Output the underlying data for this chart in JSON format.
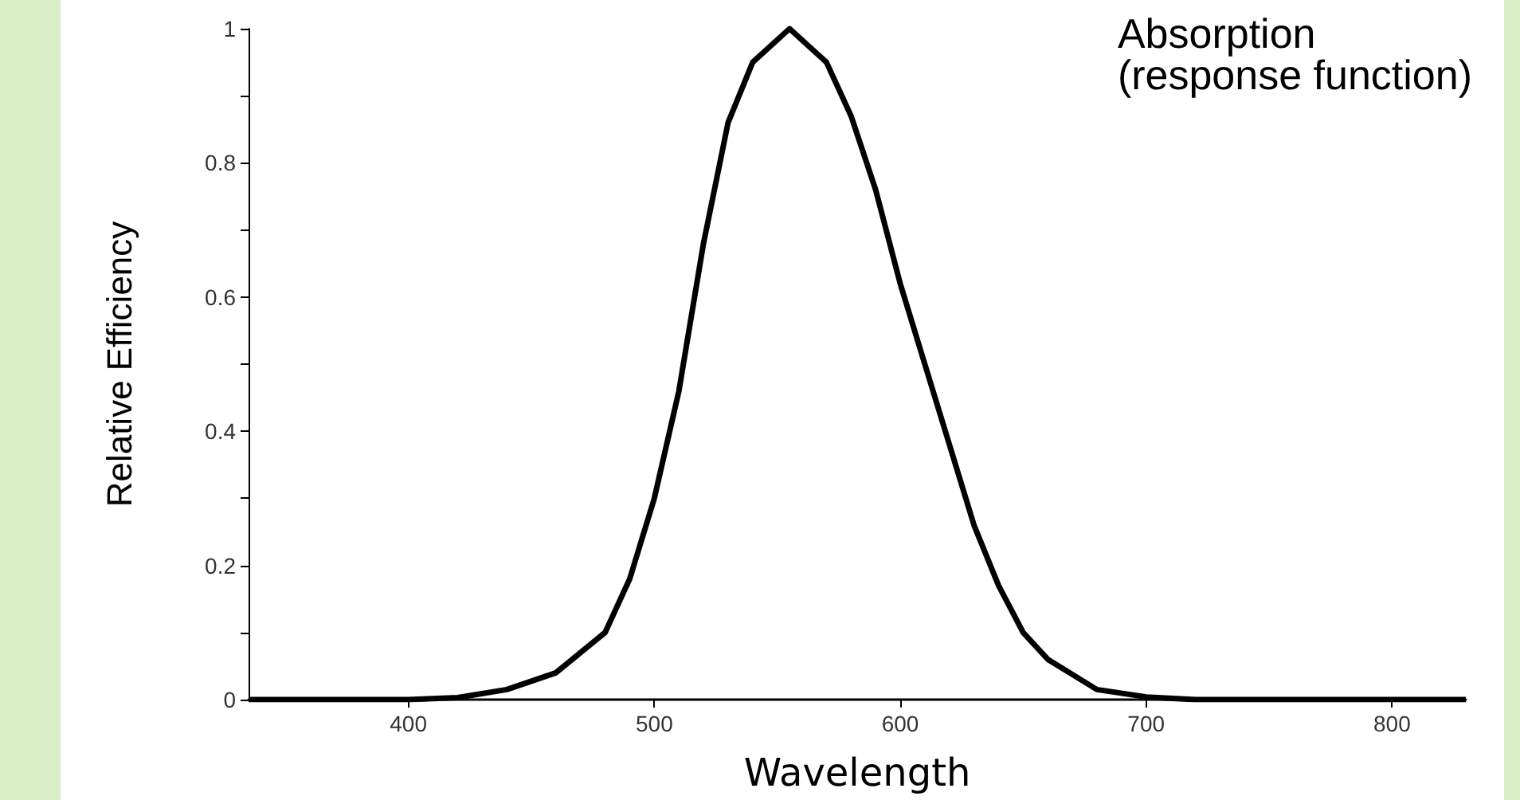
{
  "chart_data": {
    "type": "line",
    "xlabel": "Wavelength",
    "ylabel": "Relative Efficiency",
    "annotations": [
      "Absorption\n(response function)"
    ],
    "x": [
      335,
      400,
      420,
      440,
      460,
      480,
      490,
      500,
      510,
      520,
      530,
      540,
      555,
      570,
      580,
      590,
      600,
      610,
      620,
      630,
      640,
      650,
      660,
      680,
      700,
      720,
      830
    ],
    "series": [
      {
        "color": "#000000",
        "values": [
          0,
          0,
          0.003,
          0.015,
          0.04,
          0.1,
          0.18,
          0.3,
          0.46,
          0.68,
          0.86,
          0.95,
          1,
          0.95,
          0.87,
          0.76,
          0.62,
          0.5,
          0.38,
          0.26,
          0.17,
          0.1,
          0.06,
          0.015,
          0.004,
          0,
          0
        ]
      }
    ],
    "xlim": [
      335,
      830
    ],
    "xticks": [
      400,
      500,
      600,
      700,
      800
    ],
    "ylim": [
      0,
      1
    ],
    "yticks": [
      0,
      {
        "value": 0.1,
        "label": null
      },
      0.2,
      {
        "value": 0.3,
        "label": null
      },
      0.4,
      {
        "value": 0.5,
        "label": null
      },
      0.6,
      {
        "value": 0.7,
        "label": null
      },
      0.8,
      {
        "value": 0.9,
        "label": null
      },
      1
    ],
    "grid": false,
    "marker": "none",
    "line_style": "solid"
  }
}
